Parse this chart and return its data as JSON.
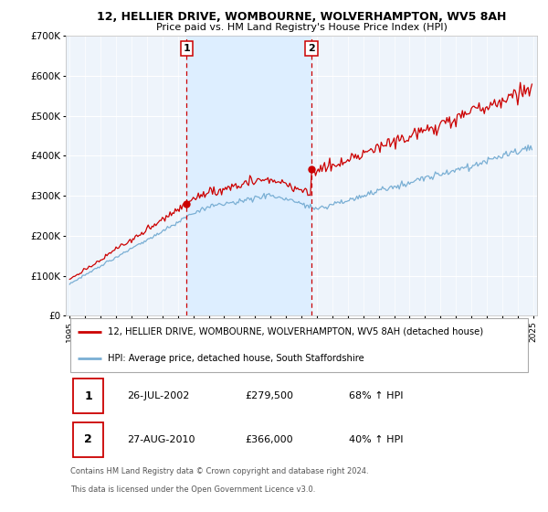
{
  "title": "12, HELLIER DRIVE, WOMBOURNE, WOLVERHAMPTON, WV5 8AH",
  "subtitle": "Price paid vs. HM Land Registry's House Price Index (HPI)",
  "sale1_price": 279500,
  "sale1_label": "1",
  "sale2_price": 366000,
  "sale2_label": "2",
  "legend_property": "12, HELLIER DRIVE, WOMBOURNE, WOLVERHAMPTON, WV5 8AH (detached house)",
  "legend_hpi": "HPI: Average price, detached house, South Staffordshire",
  "sale1_row": "26-JUL-2002",
  "sale1_amt": "£279,500",
  "sale1_pct": "68% ↑ HPI",
  "sale2_row": "27-AUG-2010",
  "sale2_amt": "£366,000",
  "sale2_pct": "40% ↑ HPI",
  "footnote1": "Contains HM Land Registry data © Crown copyright and database right 2024.",
  "footnote2": "This data is licensed under the Open Government Licence v3.0.",
  "property_color": "#cc0000",
  "hpi_color": "#7aafd4",
  "shade_color": "#ddeeff",
  "plot_bg": "#eef4fb",
  "vline_color": "#cc0000",
  "grid_color": "#ffffff",
  "border_color": "#aaaaaa",
  "ylim": [
    0,
    700000
  ],
  "yticks": [
    0,
    100000,
    200000,
    300000,
    400000,
    500000,
    600000,
    700000
  ],
  "ytick_labels": [
    "£0",
    "£100K",
    "£200K",
    "£300K",
    "£400K",
    "£500K",
    "£600K",
    "£700K"
  ],
  "xstart_year": 1995,
  "xend_year": 2025
}
